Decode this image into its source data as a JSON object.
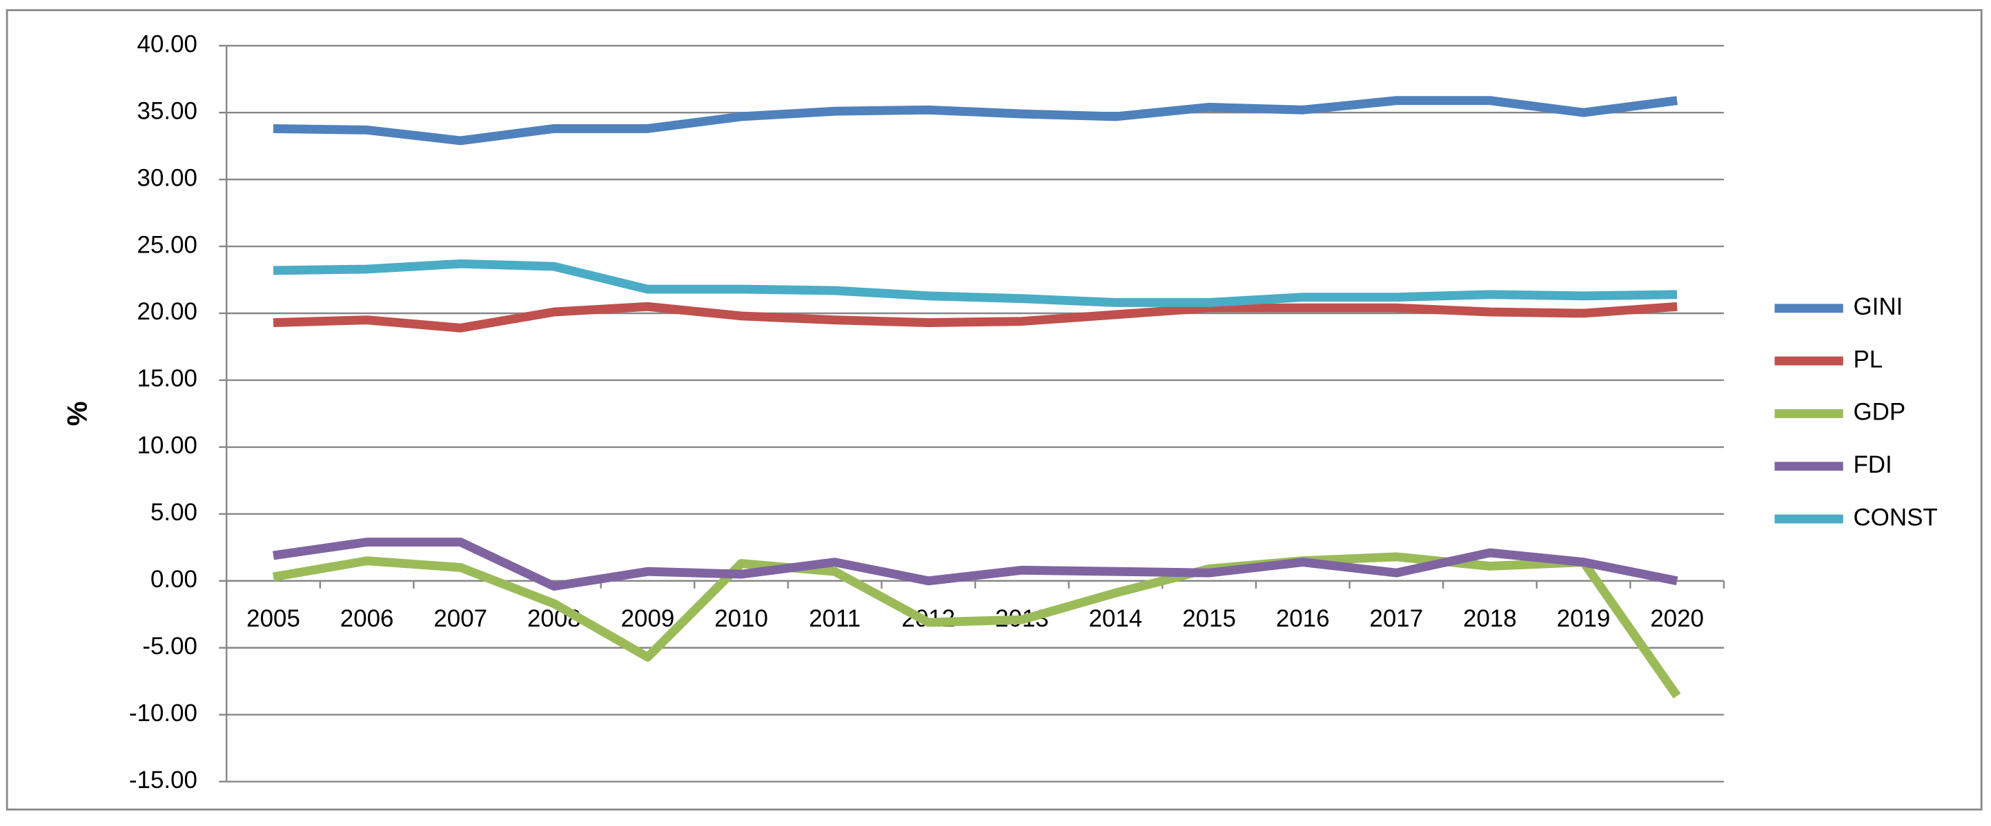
{
  "chart_data": {
    "type": "line",
    "y_label": "%",
    "categories": [
      "2005",
      "2006",
      "2007",
      "2008",
      "2009",
      "2010",
      "2011",
      "2012",
      "2013",
      "2014",
      "2015",
      "2016",
      "2017",
      "2018",
      "2019",
      "2020"
    ],
    "series": [
      {
        "name": "GINI",
        "color": "#4f81bd",
        "values": [
          33.8,
          33.7,
          32.9,
          33.8,
          33.8,
          34.7,
          35.1,
          35.2,
          34.9,
          34.7,
          35.4,
          35.2,
          35.9,
          35.9,
          35.0,
          35.9
        ]
      },
      {
        "name": "PL",
        "color": "#c0504d",
        "values": [
          19.3,
          19.5,
          18.9,
          20.1,
          20.5,
          19.8,
          19.5,
          19.3,
          19.4,
          19.9,
          20.4,
          20.4,
          20.4,
          20.1,
          20.0,
          20.5
        ]
      },
      {
        "name": "GDP",
        "color": "#9bbb59",
        "values": [
          0.3,
          1.5,
          1.0,
          -1.7,
          -5.7,
          1.3,
          0.7,
          -3.1,
          -2.9,
          -0.9,
          0.9,
          1.5,
          1.8,
          1.1,
          1.4,
          -8.6
        ]
      },
      {
        "name": "FDI",
        "color": "#8064a2",
        "values": [
          1.9,
          2.9,
          2.9,
          -0.4,
          0.7,
          0.5,
          1.4,
          0.0,
          0.8,
          0.7,
          0.6,
          1.4,
          0.6,
          2.1,
          1.4,
          0.0
        ]
      },
      {
        "name": "CONST",
        "color": "#4bacc6",
        "values": [
          23.2,
          23.3,
          23.7,
          23.5,
          21.8,
          21.8,
          21.7,
          21.3,
          21.1,
          20.8,
          20.8,
          21.2,
          21.2,
          21.4,
          21.3,
          21.4
        ]
      }
    ],
    "ylim": [
      -15,
      40
    ],
    "yticks": [
      {
        "value": -15,
        "label": "-15.00"
      },
      {
        "value": -10,
        "label": "-10.00"
      },
      {
        "value": -5,
        "label": "-5.00"
      },
      {
        "value": 0,
        "label": "0.00"
      },
      {
        "value": 5,
        "label": "5.00"
      },
      {
        "value": 10,
        "label": "10.00"
      },
      {
        "value": 15,
        "label": "15.00"
      },
      {
        "value": 20,
        "label": "20.00"
      },
      {
        "value": 25,
        "label": "25.00"
      },
      {
        "value": 30,
        "label": "30.00"
      },
      {
        "value": 35,
        "label": "35.00"
      },
      {
        "value": 40,
        "label": "40.00"
      }
    ],
    "grid": true,
    "legend": "right"
  }
}
